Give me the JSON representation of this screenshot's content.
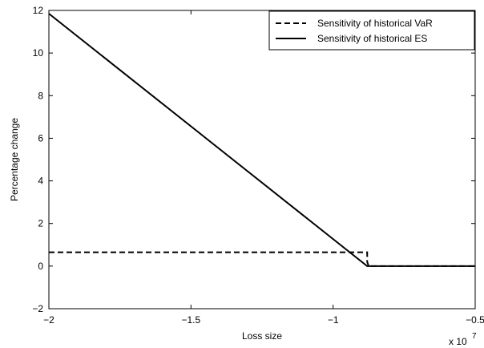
{
  "chart_data": {
    "type": "line",
    "title": "",
    "xlabel": "Loss size",
    "ylabel": "Percentage change",
    "x_multiplier_label": {
      "base": "x 10",
      "exponent": "7"
    },
    "xlim": [
      -2,
      -0.5
    ],
    "ylim": [
      -2,
      12
    ],
    "xticks": [
      -2,
      -1.5,
      -1,
      -0.5
    ],
    "xtick_labels": [
      "−2",
      "−1.5",
      "−1",
      "−0.5"
    ],
    "yticks": [
      -2,
      0,
      2,
      4,
      6,
      8,
      10,
      12
    ],
    "ytick_labels": [
      "−2",
      "0",
      "2",
      "4",
      "6",
      "8",
      "10",
      "12"
    ],
    "grid": false,
    "legend_position": "top-right",
    "series": [
      {
        "name": "Sensitivity of historical VaR",
        "style": "dashed",
        "color": "#000000",
        "points": [
          [
            -2,
            0.65
          ],
          [
            -0.88,
            0.65
          ],
          [
            -0.88,
            0.2
          ],
          [
            -0.875,
            0.0
          ],
          [
            -0.5,
            0.0
          ]
        ]
      },
      {
        "name": "Sensitivity of historical ES",
        "style": "solid",
        "color": "#000000",
        "points": [
          [
            -2,
            11.85
          ],
          [
            -0.88,
            0.0
          ],
          [
            -0.5,
            0.0
          ]
        ]
      }
    ]
  }
}
